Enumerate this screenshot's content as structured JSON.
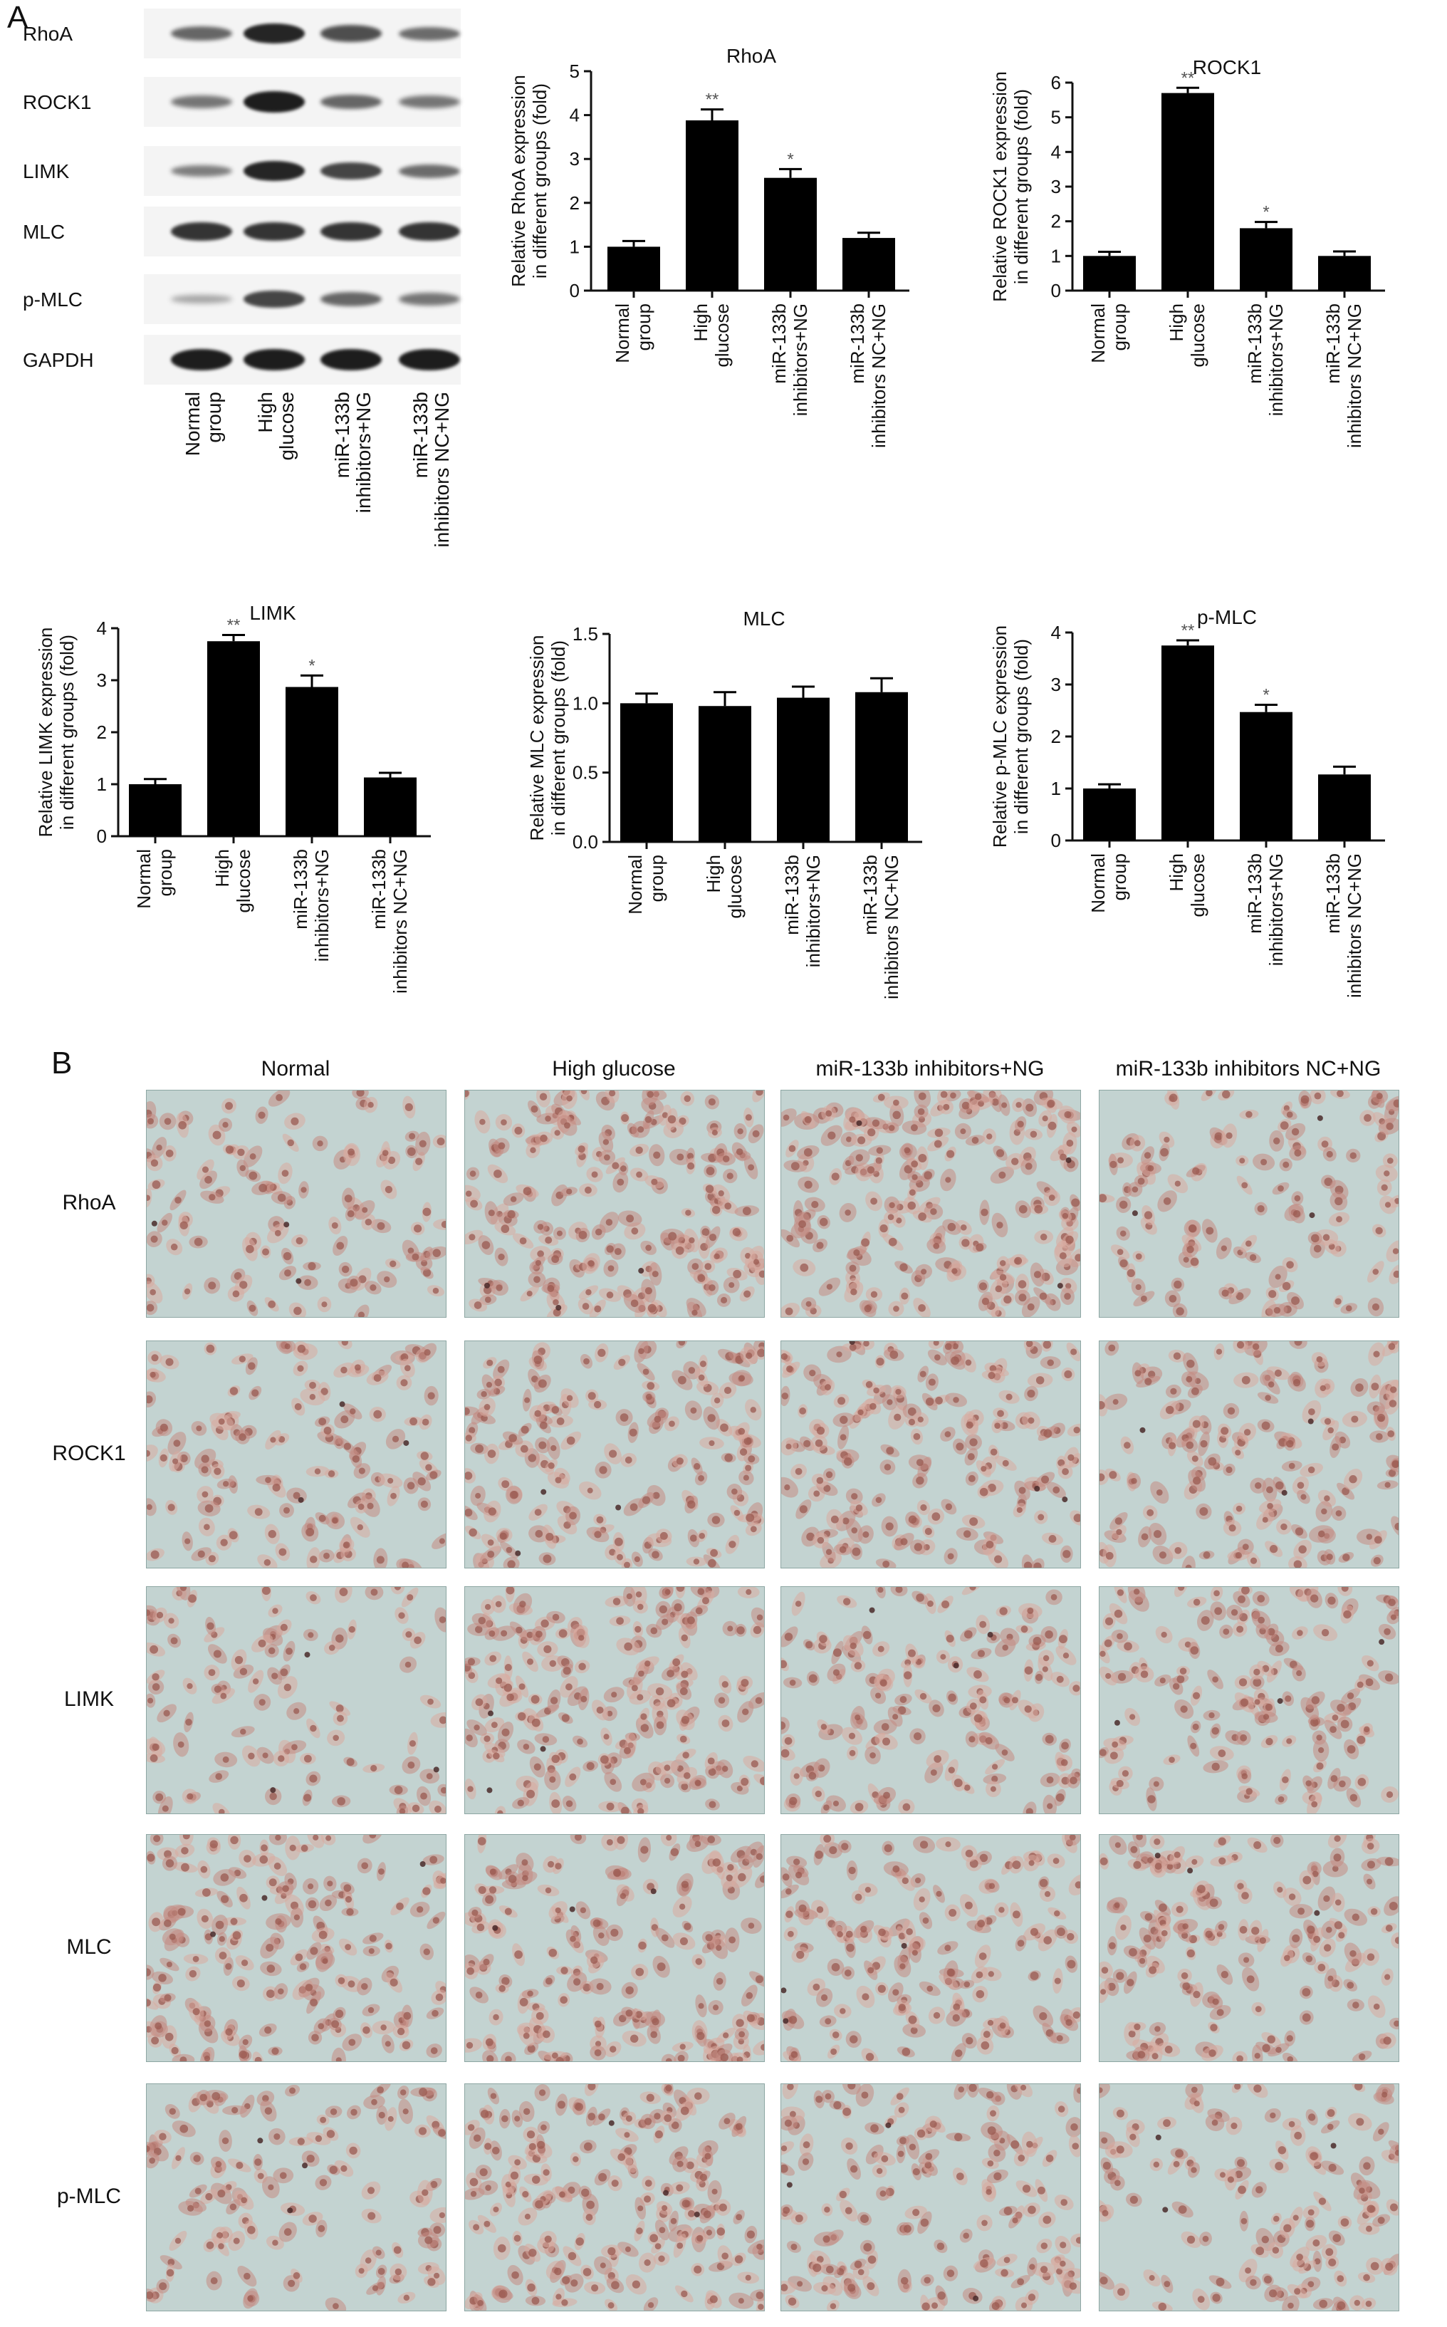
{
  "panels": {
    "a": "A",
    "b": "B"
  },
  "blot": {
    "rows": [
      "RhoA",
      "ROCK1",
      "LIMK",
      "MLC",
      "p-MLC",
      "GAPDH"
    ],
    "lanes": [
      "Normal\ngroup",
      "High\nglucose",
      "miR-133b\ninhibitors+NG",
      "miR-133b\ninhibitors NC+NG"
    ],
    "band_intensity": [
      [
        0.55,
        0.95,
        0.7,
        0.5
      ],
      [
        0.45,
        1.0,
        0.55,
        0.45
      ],
      [
        0.4,
        0.95,
        0.75,
        0.5
      ],
      [
        0.85,
        0.85,
        0.85,
        0.85
      ],
      [
        0.15,
        0.75,
        0.55,
        0.45
      ],
      [
        1.0,
        1.0,
        1.0,
        1.0
      ]
    ]
  },
  "chart_data": [
    {
      "type": "bar",
      "title": "RhoA",
      "ylabel": "Relative RhoA expression\nin different groups (fold)",
      "categories": [
        "Normal\ngroup",
        "High\nglucose",
        "miR-133b\ninhibitors+NG",
        "miR-133b\ninhibitors NC+NG"
      ],
      "values": [
        1.0,
        3.88,
        2.57,
        1.2
      ],
      "errors": [
        0.13,
        0.25,
        0.2,
        0.12
      ],
      "significance": [
        "",
        "**",
        "*",
        ""
      ],
      "ylim": [
        0,
        5
      ],
      "yticks": [
        "0",
        "1",
        "2",
        "3",
        "4",
        "5"
      ]
    },
    {
      "type": "bar",
      "title": "ROCK1",
      "ylabel": "Relative ROCK1 expression\nin different groups (fold)",
      "categories": [
        "Normal\ngroup",
        "High\nglucose",
        "miR-133b\ninhibitors+NG",
        "miR-133b\ninhibitors NC+NG"
      ],
      "values": [
        1.0,
        5.7,
        1.8,
        1.0
      ],
      "errors": [
        0.12,
        0.15,
        0.18,
        0.13
      ],
      "significance": [
        "",
        "**",
        "*",
        ""
      ],
      "ylim": [
        0,
        6
      ],
      "yticks": [
        "0",
        "1",
        "2",
        "3",
        "4",
        "5",
        "6"
      ]
    },
    {
      "type": "bar",
      "title": "LIMK",
      "ylabel": "Relative LIMK expression\nin different groups (fold)",
      "categories": [
        "Normal\ngroup",
        "High\nglucose",
        "miR-133b\ninhibitors+NG",
        "miR-133b\ninhibitors NC+NG"
      ],
      "values": [
        1.0,
        3.75,
        2.87,
        1.13
      ],
      "errors": [
        0.1,
        0.12,
        0.22,
        0.09
      ],
      "significance": [
        "",
        "**",
        "*",
        ""
      ],
      "ylim": [
        0,
        4
      ],
      "yticks": [
        "0",
        "1",
        "2",
        "3",
        "4"
      ]
    },
    {
      "type": "bar",
      "title": "MLC",
      "ylabel": "Relative MLC expression\nin different groups (fold)",
      "categories": [
        "Normal\ngroup",
        "High\nglucose",
        "miR-133b\ninhibitors+NG",
        "miR-133b\ninhibitors NC+NG"
      ],
      "values": [
        1.0,
        0.98,
        1.04,
        1.08
      ],
      "errors": [
        0.07,
        0.1,
        0.08,
        0.1
      ],
      "significance": [
        "",
        "",
        "",
        ""
      ],
      "ylim": [
        0,
        1.5
      ],
      "yticks": [
        "0.0",
        "0.5",
        "1.0",
        "1.5"
      ]
    },
    {
      "type": "bar",
      "title": "p-MLC",
      "ylabel": "Relative p-MLC expression\nin different groups (fold)",
      "categories": [
        "Normal\ngroup",
        "High\nglucose",
        "miR-133b\ninhibitors+NG",
        "miR-133b\ninhibitors NC+NG"
      ],
      "values": [
        1.0,
        3.75,
        2.47,
        1.27
      ],
      "errors": [
        0.08,
        0.1,
        0.14,
        0.15
      ],
      "significance": [
        "",
        "**",
        "*",
        ""
      ],
      "ylim": [
        0,
        4
      ],
      "yticks": [
        "0",
        "1",
        "2",
        "3",
        "4"
      ]
    }
  ],
  "micrographs": {
    "columns": [
      "Normal",
      "High glucose",
      "miR-133b inhibitors+NG",
      "miR-133b inhibitors NC+NG"
    ],
    "rows": [
      "RhoA",
      "ROCK1",
      "LIMK",
      "MLC",
      "p-MLC"
    ],
    "cell_density": [
      [
        0.45,
        0.95,
        0.95,
        0.5
      ],
      [
        0.55,
        0.75,
        0.8,
        0.65
      ],
      [
        0.35,
        0.9,
        0.6,
        0.6
      ],
      [
        0.75,
        0.8,
        0.65,
        0.7
      ],
      [
        0.45,
        0.85,
        0.65,
        0.5
      ]
    ],
    "colors": {
      "background": "#c3d3d1",
      "cell": "#c58d83",
      "cell_light": "#d8aba1",
      "nucleus": "#9a5a50",
      "dark_cell": "#4a2a2a"
    }
  }
}
